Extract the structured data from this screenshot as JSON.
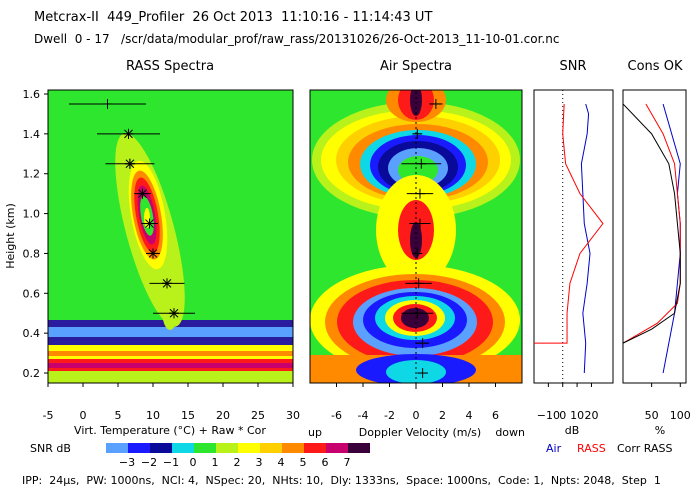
{
  "header": {
    "title_line": "Metcrax-II  449_Profiler  26 Oct 2013  11:10:16 - 11:14:43 UT",
    "dwell_line": "Dwell  0 - 17   /scr/data/modular_prof/raw_rass/20131026/26-Oct-2013_11-10-01.cor.nc"
  },
  "colors": {
    "snr_scale": [
      "#5aa0ff",
      "#1a1aff",
      "#0a0a9a",
      "#0ed8e6",
      "#2ee62e",
      "#b9f21a",
      "#ffff00",
      "#ffd000",
      "#ff8a00",
      "#ff1a1a",
      "#c8006e",
      "#3a003a"
    ],
    "background_green": "#2ee62e",
    "air_line": "#0000c8",
    "rass_line": "#ff0000",
    "corr_line": "#000000"
  },
  "chart_data": [
    {
      "type": "heatmap",
      "title": "RASS Spectra",
      "xlabel": "Virt. Temperature (°C)   + Raw   * Cor",
      "ylabel": "Height (km)",
      "xlim": [
        -5,
        30
      ],
      "ylim": [
        0.15,
        1.62
      ],
      "x_ticks": [
        -5,
        0,
        5,
        10,
        15,
        20,
        25,
        30
      ],
      "y_ticks": [
        0.2,
        0.4,
        0.6,
        0.8,
        1.0,
        1.2,
        1.4,
        1.6
      ],
      "raw_points": [
        {
          "x": 3.5,
          "y": 1.55,
          "xerr": 5.5
        },
        {
          "x": 6.5,
          "y": 1.4,
          "xerr": 4.5
        },
        {
          "x": 6.7,
          "y": 1.25,
          "xerr": 3.5
        },
        {
          "x": 8.5,
          "y": 1.1,
          "xerr": 1.2
        },
        {
          "x": 9.5,
          "y": 0.95,
          "xerr": 1.2
        },
        {
          "x": 10.0,
          "y": 0.8,
          "xerr": 1.0
        },
        {
          "x": 12.0,
          "y": 0.65,
          "xerr": 2.5
        },
        {
          "x": 13.0,
          "y": 0.5,
          "xerr": 3.0
        }
      ],
      "cor_points": [
        {
          "x": 6.5,
          "y": 1.4
        },
        {
          "x": 6.7,
          "y": 1.25
        },
        {
          "x": 8.5,
          "y": 1.1
        },
        {
          "x": 9.5,
          "y": 0.95
        },
        {
          "x": 10.0,
          "y": 0.8
        },
        {
          "x": 12.0,
          "y": 0.65
        },
        {
          "x": 13.0,
          "y": 0.5
        }
      ]
    },
    {
      "type": "heatmap",
      "title": "Air Spectra",
      "xlabel": "Doppler Velocity (m/s)",
      "x_left_label": "up",
      "x_right_label": "down",
      "xlim": [
        -8,
        8
      ],
      "ylim": [
        0.15,
        1.62
      ],
      "x_ticks": [
        -6,
        -4,
        -2,
        0,
        2,
        4,
        6
      ],
      "points": [
        {
          "x": 1.5,
          "y": 1.55,
          "xerr": 0.5
        },
        {
          "x": 0.1,
          "y": 1.4,
          "xerr": 0.3
        },
        {
          "x": 0.4,
          "y": 1.25,
          "xerr": 1.5
        },
        {
          "x": 0.3,
          "y": 1.1,
          "xerr": 1.0
        },
        {
          "x": 0.3,
          "y": 0.95,
          "xerr": 0.8
        },
        {
          "x": 0.1,
          "y": 0.8,
          "xerr": 0.3
        },
        {
          "x": 0.2,
          "y": 0.65,
          "xerr": 1.0
        },
        {
          "x": 0.1,
          "y": 0.5,
          "xerr": 1.2
        },
        {
          "x": 0.5,
          "y": 0.35,
          "xerr": 0.5
        },
        {
          "x": 0.5,
          "y": 0.2,
          "xerr": 0.4
        }
      ]
    },
    {
      "type": "line",
      "title": "SNR",
      "xlabel": "dB",
      "xlim": [
        -20,
        35
      ],
      "ylim": [
        0.15,
        1.62
      ],
      "x_ticks": [
        -10,
        0,
        10,
        20
      ],
      "x_tick_labels": [
        "−10",
        "0",
        "10",
        "20"
      ],
      "series": [
        {
          "name": "Air",
          "x": [
            15,
            16,
            14,
            17,
            19,
            15,
            14,
            13,
            17,
            18,
            16
          ],
          "y": [
            0.2,
            0.35,
            0.5,
            0.65,
            0.8,
            0.95,
            1.1,
            1.25,
            1.4,
            1.5,
            1.55
          ]
        },
        {
          "name": "RASS",
          "x": [
            -20,
            3,
            3,
            5,
            12,
            28,
            12,
            2,
            0,
            1
          ],
          "y": [
            0.35,
            0.35,
            0.5,
            0.65,
            0.8,
            0.95,
            1.1,
            1.25,
            1.4,
            1.55
          ]
        }
      ]
    },
    {
      "type": "line",
      "title": "Cons OK",
      "xlabel": "%",
      "xlim": [
        0,
        110
      ],
      "ylim": [
        0.15,
        1.62
      ],
      "x_ticks": [
        50,
        100
      ],
      "series": [
        {
          "name": "Air",
          "x": [
            70,
            80,
            90,
            95,
            100,
            100,
            95,
            100,
            85,
            70
          ],
          "y": [
            0.2,
            0.35,
            0.5,
            0.65,
            0.8,
            0.95,
            1.1,
            1.25,
            1.4,
            1.55
          ]
        },
        {
          "name": "RASS",
          "x": [
            0,
            60,
            95,
            100,
            100,
            100,
            95,
            90,
            70,
            40
          ],
          "y": [
            0.35,
            0.45,
            0.55,
            0.65,
            0.8,
            0.95,
            1.1,
            1.25,
            1.4,
            1.55
          ]
        },
        {
          "name": "Corr RASS",
          "x": [
            0,
            50,
            90,
            100,
            100,
            95,
            90,
            80,
            50,
            0
          ],
          "y": [
            0.35,
            0.42,
            0.5,
            0.65,
            0.8,
            0.95,
            1.1,
            1.25,
            1.4,
            1.55
          ]
        }
      ]
    }
  ],
  "legend": {
    "air": "Air",
    "rass": "RASS",
    "corr": "Corr RASS"
  },
  "colorbar": {
    "label": "SNR dB",
    "ticks": [
      "−3",
      "−2",
      "−1",
      "0",
      "1",
      "2",
      "3",
      "4",
      "5",
      "6",
      "7"
    ]
  },
  "footer": {
    "text": "IPP:  24µs,  PW: 1000ns,  NCI: 4,  NSpec: 20,  NHts: 10,  Dly: 1333ns,  Space: 1000ns,  Code: 1,  Npts: 2048,  Step  1"
  }
}
